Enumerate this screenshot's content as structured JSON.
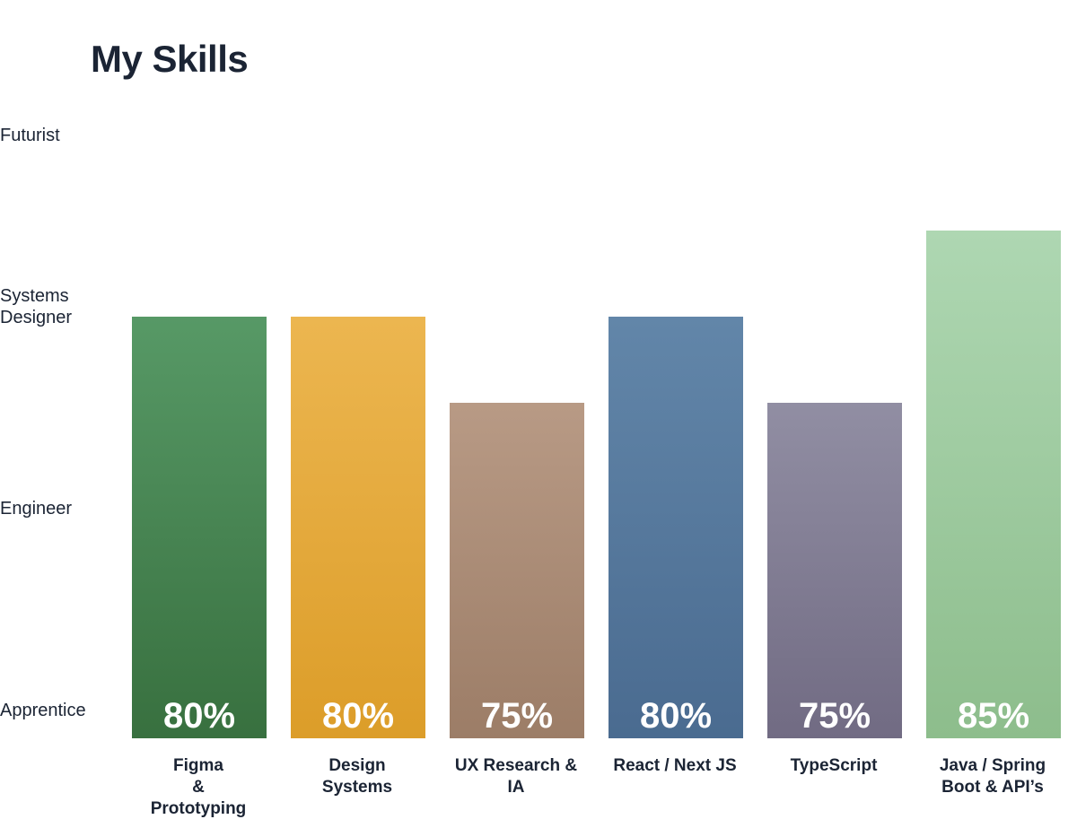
{
  "title": "My Skills",
  "chart_data": {
    "type": "bar",
    "title": "My Skills",
    "categories": [
      [
        "Figma",
        "&",
        "Prototyping"
      ],
      [
        "Design",
        "Systems"
      ],
      [
        "UX Research &",
        "IA"
      ],
      [
        "React / Next JS"
      ],
      [
        "TypeScript"
      ],
      [
        "Java / Spring",
        "Boot & API’s"
      ]
    ],
    "values": [
      80,
      80,
      75,
      80,
      75,
      85
    ],
    "value_labels": [
      "80%",
      "80%",
      "75%",
      "80%",
      "75%",
      "85%"
    ],
    "colors": [
      [
        "#579966",
        "#38703f"
      ],
      [
        "#ecb650",
        "#dc9d29"
      ],
      [
        "#b89a85",
        "#9c7d67"
      ],
      [
        "#6286a9",
        "#4a6b90"
      ],
      [
        "#918ea3",
        "#716b83"
      ],
      [
        "#aed7b2",
        "#8dbd8c"
      ]
    ],
    "y_levels": [
      [
        "Futurist"
      ],
      [
        "Systems",
        "Designer"
      ],
      [
        "Engineer"
      ],
      [
        "Apprentice"
      ]
    ],
    "grid": false,
    "legend": "none"
  }
}
